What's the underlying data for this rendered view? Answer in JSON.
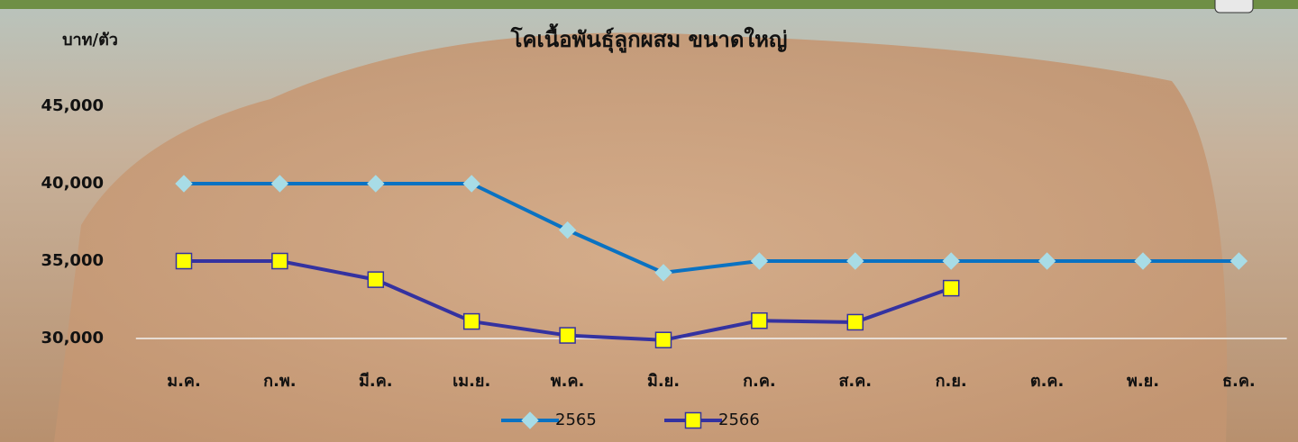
{
  "chart_data": {
    "type": "line",
    "title": "โคเนื้อพันธุ์ลูกผสม ขนาดใหญ่",
    "y_label": "บาท/ตัว",
    "categories": [
      "ม.ค.",
      "ก.พ.",
      "มี.ค.",
      "เม.ย.",
      "พ.ค.",
      "มิ.ย.",
      "ก.ค.",
      "ส.ค.",
      "ก.ย.",
      "ต.ค.",
      "พ.ย.",
      "ธ.ค."
    ],
    "series": [
      {
        "name": "2565",
        "color": "#0a72c2",
        "marker_color": "#a8dce6",
        "marker": "diamond",
        "values": [
          40000,
          40000,
          40000,
          40000,
          37000,
          34250,
          35000,
          35000,
          35000,
          35000,
          35000,
          35000
        ]
      },
      {
        "name": "2566",
        "color": "#3432a0",
        "marker_color": "#ffff00",
        "marker": "square",
        "values": [
          35000,
          35000,
          33800,
          31100,
          30200,
          29900,
          31150,
          31050,
          33250,
          null,
          null,
          null
        ]
      }
    ],
    "ylim": [
      30000,
      45000
    ],
    "yticks": [
      {
        "value": 30000,
        "label": "30,000"
      },
      {
        "value": 35000,
        "label": "35,000"
      },
      {
        "value": 40000,
        "label": "40,000"
      },
      {
        "value": 45000,
        "label": "45,000"
      }
    ],
    "grid_baseline": true,
    "legend": "bottom"
  }
}
